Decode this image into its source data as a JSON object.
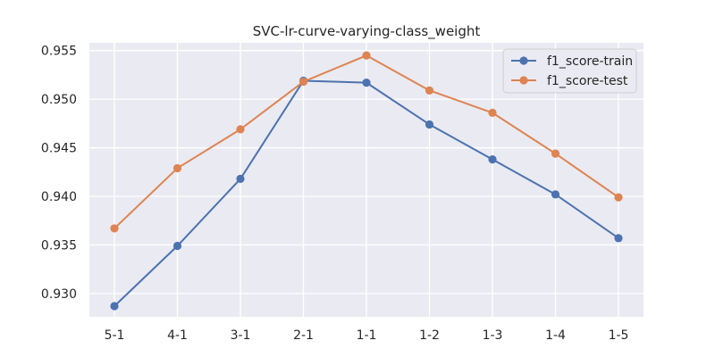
{
  "chart_data": {
    "type": "line",
    "title": "SVC-lr-curve-varying-class_weight",
    "xlabel": "",
    "ylabel": "",
    "categories": [
      "5-1",
      "4-1",
      "3-1",
      "2-1",
      "1-1",
      "1-2",
      "1-3",
      "1-4",
      "1-5"
    ],
    "series": [
      {
        "name": "f1_score-train",
        "color": "#4c72b0",
        "values": [
          0.9287,
          0.9349,
          0.9418,
          0.9519,
          0.9517,
          0.9474,
          0.9438,
          0.9402,
          0.9357
        ]
      },
      {
        "name": "f1_score-test",
        "color": "#dd8452",
        "values": [
          0.9367,
          0.9429,
          0.9469,
          0.9518,
          0.9545,
          0.9509,
          0.9486,
          0.9444,
          0.9399
        ]
      }
    ],
    "ylim": [
      0.9276,
      0.9558
    ],
    "yticks": [
      "0.930",
      "0.935",
      "0.940",
      "0.945",
      "0.950",
      "0.955"
    ],
    "grid": true,
    "legend_position": "top-right",
    "marker": "circle",
    "background_color": "#eaeaf2",
    "grid_color": "#ffffff"
  }
}
